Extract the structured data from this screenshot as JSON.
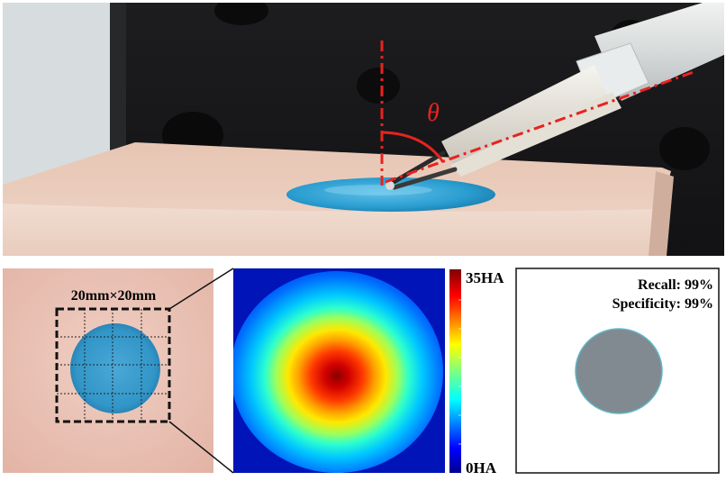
{
  "top_photo": {
    "angle_symbol": "θ"
  },
  "left_photo": {
    "region_label": "20mm×20mm"
  },
  "heatmap": {
    "colorbar_max_label": "35HA",
    "colorbar_min_label": "0HA"
  },
  "segmentation": {
    "recall_label": "Recall: 99%",
    "specificity_label": "Specificity: 99%"
  },
  "colors": {
    "guide_line": "#e8231e",
    "gel_blue": "#2b9ccf",
    "phantom_skin": "#e9c9b9",
    "mask_gray": "#818b91",
    "mask_outline": "#5fb7c7"
  }
}
